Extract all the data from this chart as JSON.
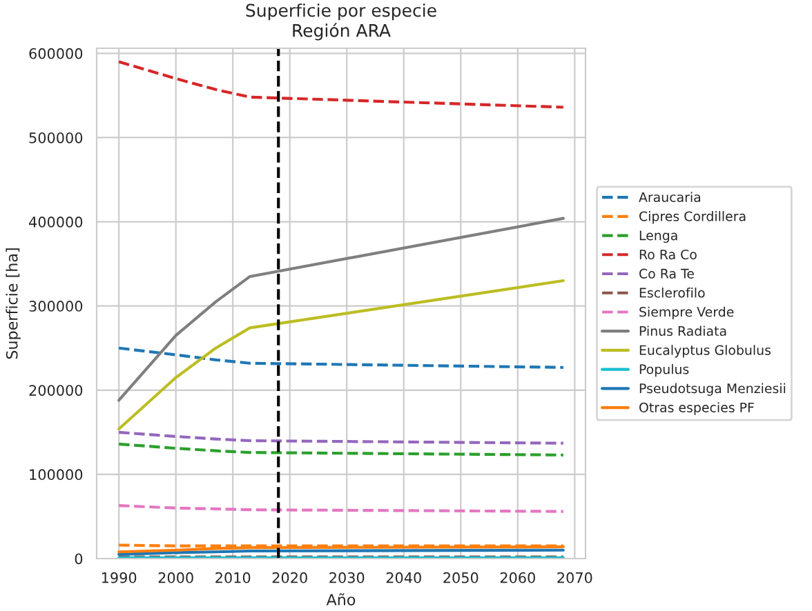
{
  "chart_data": {
    "type": "line",
    "title": "Superficie por especie\nRegión ARA",
    "xlabel": "Año",
    "ylabel": "Superficie [ha]",
    "x": [
      1990,
      2000,
      2007,
      2013,
      2068
    ],
    "series": [
      {
        "name": "Araucaria",
        "color": "#1f77b4",
        "line_style": "dashed",
        "values": [
          250000,
          242000,
          236000,
          232000,
          227000
        ]
      },
      {
        "name": "Cipres Cordillera",
        "color": "#ff7f0e",
        "line_style": "dashed",
        "values": [
          16000,
          15000,
          15000,
          15000,
          15000
        ]
      },
      {
        "name": "Lenga",
        "color": "#2ca02c",
        "line_style": "dashed",
        "values": [
          136000,
          131000,
          128000,
          126000,
          123000
        ]
      },
      {
        "name": "Ro Ra Co",
        "color": "#d62728",
        "line_style": "dashed",
        "values": [
          590000,
          570000,
          557000,
          548000,
          536000
        ]
      },
      {
        "name": "Co Ra Te",
        "color": "#9467bd",
        "line_style": "dashed",
        "values": [
          150000,
          145000,
          142000,
          140000,
          137000
        ]
      },
      {
        "name": "Esclerofilo",
        "color": "#8c564b",
        "line_style": "dashed",
        "values": [
          2000,
          2000,
          2000,
          2000,
          2000
        ]
      },
      {
        "name": "Siempre Verde",
        "color": "#e377c2",
        "line_style": "dashed",
        "values": [
          63000,
          60000,
          59000,
          58000,
          56000
        ]
      },
      {
        "name": "Pinus Radiata",
        "color": "#7f7f7f",
        "line_style": "solid",
        "values": [
          188000,
          265000,
          305000,
          335000,
          404000
        ]
      },
      {
        "name": "Eucalyptus Globulus",
        "color": "#bcbd22",
        "line_style": "solid",
        "values": [
          154000,
          215000,
          250000,
          274000,
          330000
        ]
      },
      {
        "name": "Populus",
        "color": "#17becf",
        "line_style": "solid",
        "values": [
          1000,
          1000,
          1000,
          1000,
          1000
        ]
      },
      {
        "name": "Pseudotsuga Menziesii",
        "color": "#1f77b4",
        "line_style": "solid",
        "values": [
          5000,
          7000,
          8000,
          9000,
          10000
        ]
      },
      {
        "name": "Otras especies PF",
        "color": "#ff7f0e",
        "line_style": "solid",
        "values": [
          8000,
          10000,
          12000,
          13000,
          14000
        ]
      }
    ],
    "xlim": [
      1986.1,
      2071.9
    ],
    "xticks": [
      1990,
      2000,
      2010,
      2020,
      2030,
      2040,
      2050,
      2060,
      2070
    ],
    "ylim": [
      0,
      606000
    ],
    "yticks": [
      0,
      100000,
      200000,
      300000,
      400000,
      500000,
      600000
    ],
    "ref_lines": [
      {
        "axis": "x",
        "value": 2018,
        "color": "#000000",
        "line_style": "dashed"
      }
    ],
    "grid": true,
    "legend": "right",
    "marker": "none"
  }
}
